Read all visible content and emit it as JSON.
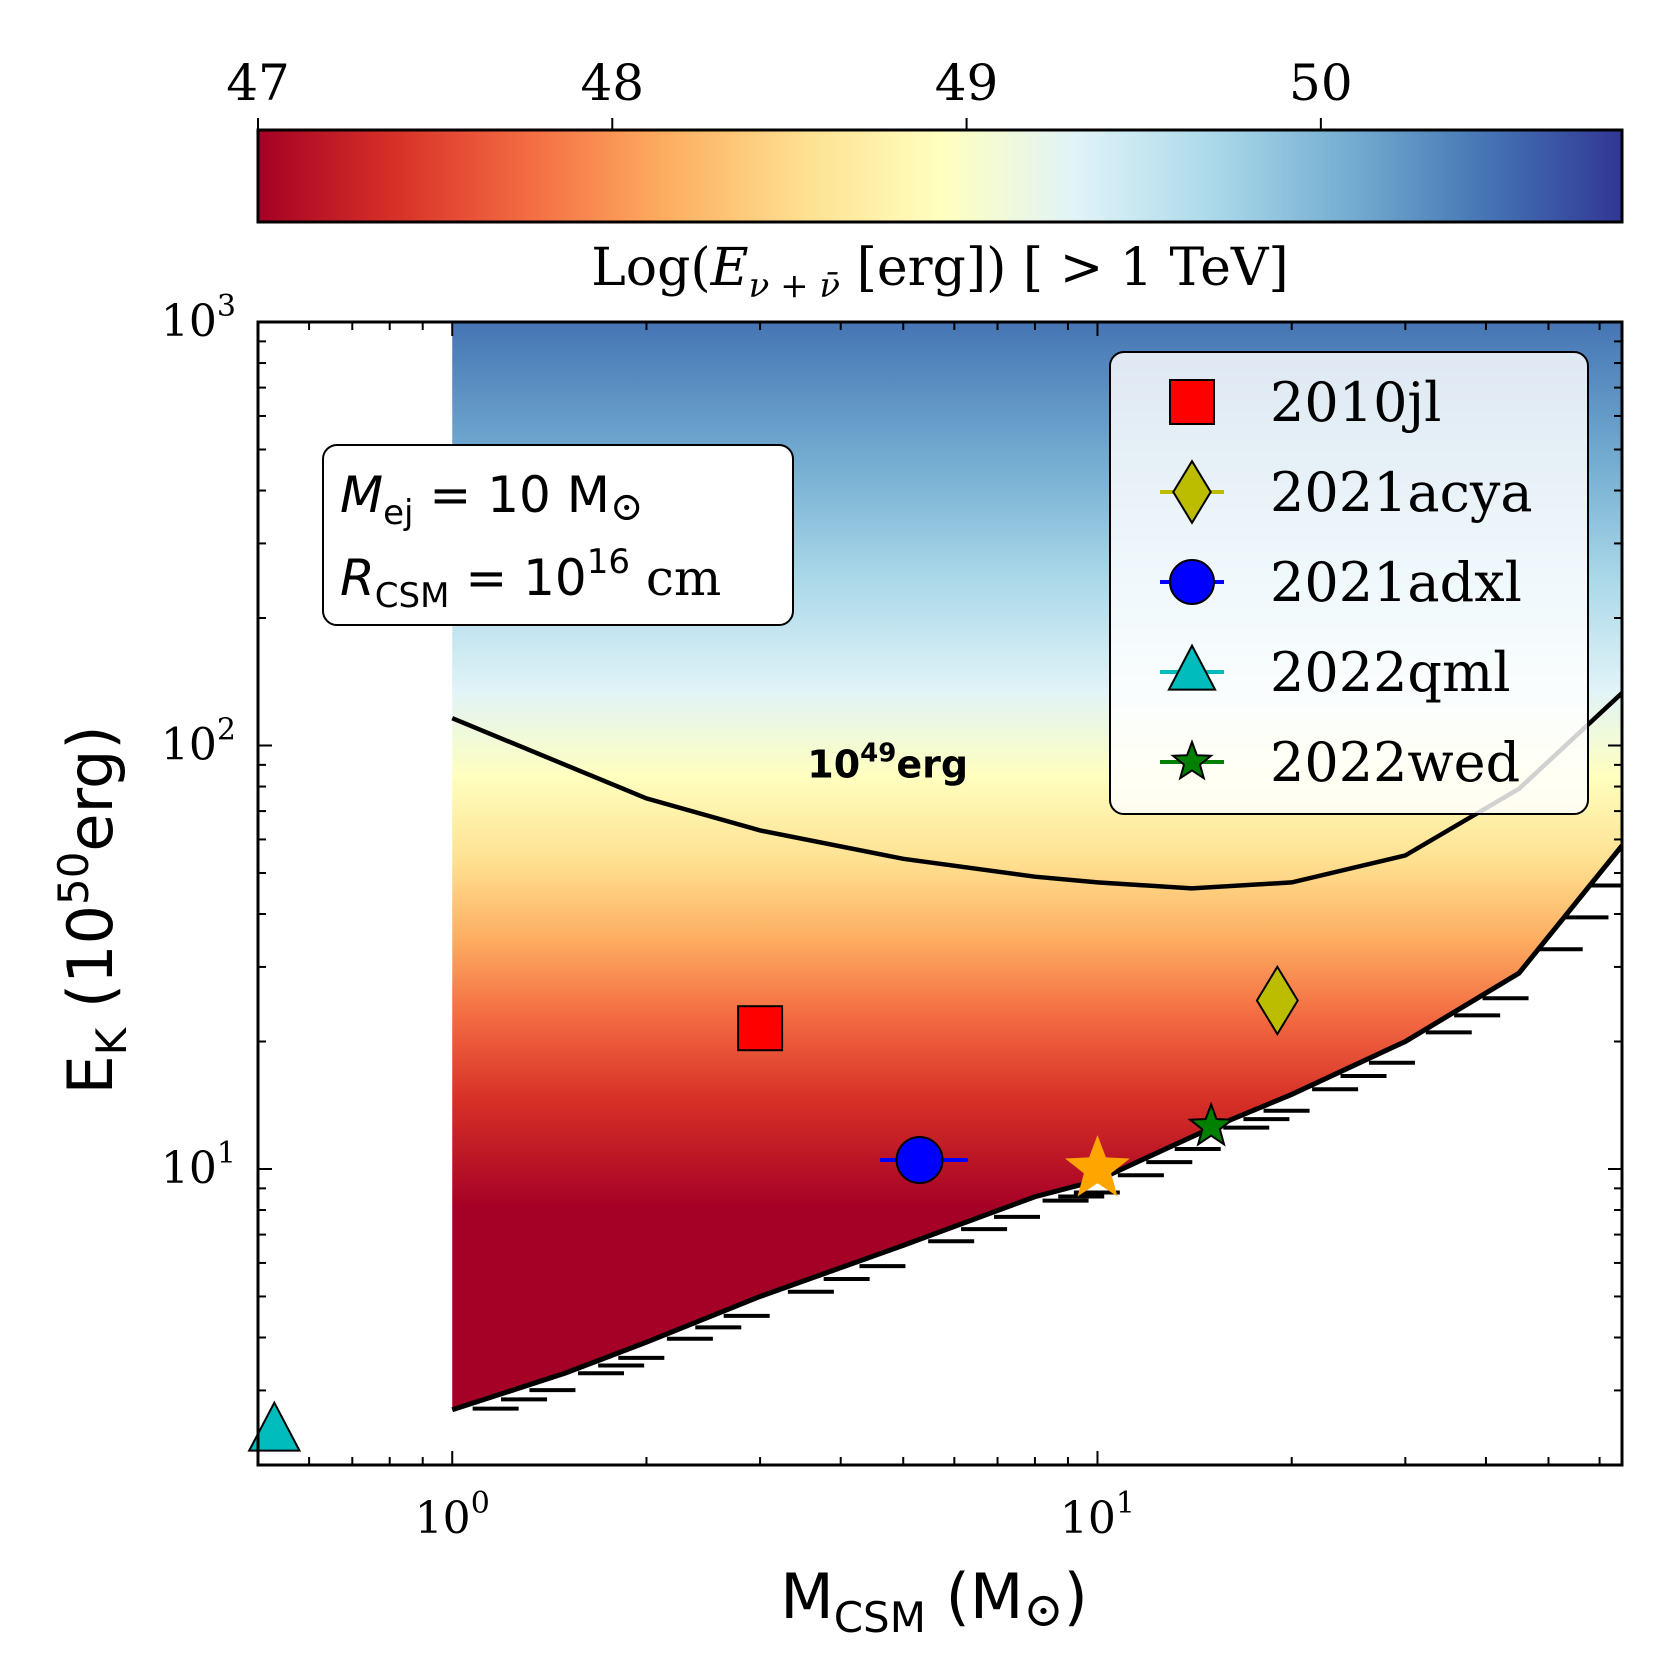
{
  "chart_data": {
    "type": "heatmap",
    "colorbar": {
      "label": "Log(E_{ν+ν̄} [erg]) [ > 1 TeV]",
      "label_parts": {
        "prefix": "Log(",
        "symbol": "E",
        "subscript": "ν + ν̄",
        "suffix": " [erg]) [ > 1 TeV]"
      },
      "range": [
        47,
        50.85
      ],
      "ticks": [
        "47",
        "48",
        "49",
        "50"
      ],
      "tick_values": [
        47,
        48,
        49,
        50
      ],
      "colormap": [
        "#a50026",
        "#d73027",
        "#f46d43",
        "#fdae61",
        "#fee090",
        "#ffffbf",
        "#e0f3f8",
        "#abd9e9",
        "#74add1",
        "#4575b4",
        "#313695"
      ]
    },
    "x_axis": {
      "label": "M_CSM (M_⊙)",
      "label_parts": {
        "main": "M",
        "sub": "CSM",
        "rest": " (M",
        "sym": "⊙",
        "close": ")"
      },
      "scale": "log",
      "range": [
        0.5,
        65
      ],
      "ticks": [
        {
          "value": 1,
          "base": "10",
          "exp": "0"
        },
        {
          "value": 10,
          "base": "10",
          "exp": "1"
        }
      ]
    },
    "y_axis": {
      "label": "E_K (10^50 erg)",
      "label_parts": {
        "main": "E",
        "sub": "K",
        "open": " (10",
        "exp": "50",
        "rest": "erg)"
      },
      "scale": "log",
      "range": [
        2,
        1000
      ],
      "ticks": [
        {
          "value": 10,
          "base": "10",
          "exp": "1"
        },
        {
          "value": 100,
          "base": "10",
          "exp": "2"
        },
        {
          "value": 1000,
          "base": "10",
          "exp": "3"
        }
      ]
    },
    "heatmap_region": {
      "x_min": 1,
      "x_max": 65,
      "y_max": 1000
    },
    "lower_boundary": [
      {
        "x": 1.0,
        "y": 2.7
      },
      {
        "x": 1.5,
        "y": 3.3
      },
      {
        "x": 2.0,
        "y": 3.9
      },
      {
        "x": 3.0,
        "y": 5.0
      },
      {
        "x": 5.0,
        "y": 6.6
      },
      {
        "x": 8.0,
        "y": 8.6
      },
      {
        "x": 10.0,
        "y": 9.4
      },
      {
        "x": 15.0,
        "y": 12.5
      },
      {
        "x": 20.0,
        "y": 15.0
      },
      {
        "x": 30.0,
        "y": 20.0
      },
      {
        "x": 45.0,
        "y": 29.0
      },
      {
        "x": 65.0,
        "y": 58.0
      }
    ],
    "contour": {
      "label_base": "10",
      "label_exp": "49",
      "label_unit": "erg",
      "level_log": 49,
      "points": [
        {
          "x": 1.0,
          "y": 116
        },
        {
          "x": 2.0,
          "y": 75
        },
        {
          "x": 3.0,
          "y": 63
        },
        {
          "x": 5.0,
          "y": 54
        },
        {
          "x": 8.0,
          "y": 49
        },
        {
          "x": 10.0,
          "y": 47.5
        },
        {
          "x": 14.0,
          "y": 46
        },
        {
          "x": 20.0,
          "y": 47.5
        },
        {
          "x": 30.0,
          "y": 55
        },
        {
          "x": 45.0,
          "y": 79
        },
        {
          "x": 65.0,
          "y": 133
        }
      ]
    },
    "annotation_box": {
      "line1": {
        "symbol": "M",
        "sub": "ej",
        "rest": " = 10 M",
        "sym": "⊙"
      },
      "line2": {
        "symbol": "R",
        "sub": "CSM",
        "rest": " = 10",
        "exp": "16",
        "unit": " cm"
      }
    },
    "series": [
      {
        "name": "2010jl",
        "marker": "square",
        "color": "#ff0000",
        "x": 3.0,
        "y": 21.5
      },
      {
        "name": "2021acya",
        "marker": "diamond",
        "color": "#bcbc00",
        "x": 19.0,
        "y": 25.0
      },
      {
        "name": "2021adxl",
        "marker": "circle",
        "color": "#0000ff",
        "x": 5.3,
        "y": 10.5,
        "xerr": [
          4.6,
          6.3
        ]
      },
      {
        "name": "2022qml",
        "marker": "triangle",
        "color": "#00bcbc",
        "x": 0.53,
        "y": 2.4
      },
      {
        "name": "2022wed",
        "marker": "star",
        "color": "#007f00",
        "x": 15.0,
        "y": 12.6
      }
    ],
    "extra_markers": [
      {
        "marker": "star",
        "color": "#ffa500",
        "x": 10.0,
        "y": 10.0
      }
    ],
    "legend": {
      "placement": "top-right"
    }
  }
}
